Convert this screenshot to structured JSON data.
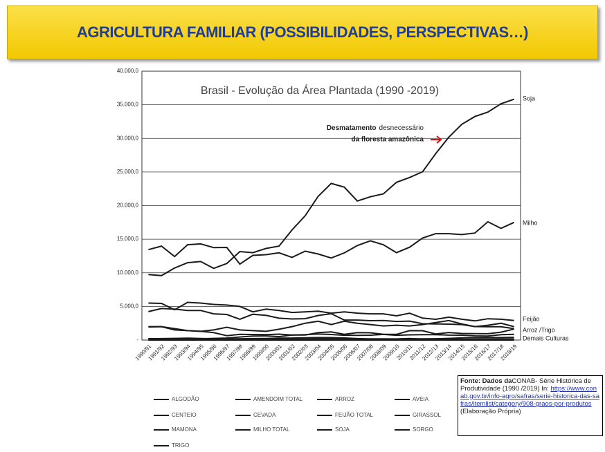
{
  "slide": {
    "title": "AGRICULTURA FAMILIAR (POSSIBILIDADES, PERSPECTIVAS…)",
    "source": {
      "label": "Fonte: Dados da",
      "text": "CONAB- Série Histórica de Produtividade (1990 /2019) In:",
      "url": "https://www.conab.gov.br/info-agro/safras/serie-historica-das-safras/itemlist/category/908-graos-por-produtos",
      "suffix": "(Elaboração Própria)"
    }
  },
  "chart_data": {
    "type": "line",
    "title": "Brasil - Evolução da Área Plantada (1990 -2019)",
    "categories": [
      "1990/91",
      "1991/92",
      "1992/93",
      "1993/94",
      "1994/95",
      "1995/96",
      "1996/97",
      "1997/98",
      "1998/99",
      "1999/00",
      "2000/01",
      "2001/02",
      "2002/03",
      "2003/04",
      "2004/05",
      "2005/06",
      "2006/07",
      "2007/08",
      "2008/09",
      "2009/10",
      "2010/11",
      "2011/12",
      "2012/13",
      "2013/14",
      "2014/15",
      "2015/16",
      "2016/17",
      "2017/18",
      "2018/19"
    ],
    "ylim": [
      0,
      40000
    ],
    "yticks": [
      {
        "value": 0,
        "label": "-"
      },
      {
        "value": 5000,
        "label": "5.000,0"
      },
      {
        "value": 10000,
        "label": "10.000,0"
      },
      {
        "value": 15000,
        "label": "15.000,0"
      },
      {
        "value": 20000,
        "label": "20.000,0"
      },
      {
        "value": 25000,
        "label": "25.000,0"
      },
      {
        "value": 30000,
        "label": "30.000,0"
      },
      {
        "value": 35000,
        "label": "35.000,0"
      },
      {
        "value": 40000,
        "label": "40.000,0"
      }
    ],
    "grid": true,
    "series": [
      {
        "name": "ALGODÃO",
        "color": "#1a1a1a",
        "values": [
          1940,
          2000,
          1500,
          1400,
          1300,
          1100,
          650,
          850,
          820,
          800,
          870,
          750,
          740,
          1100,
          1200,
          850,
          1100,
          1080,
          840,
          840,
          1400,
          1390,
          900,
          1120,
          980,
          960,
          940,
          1175,
          1620
        ]
      },
      {
        "name": "AMENDOIM TOTAL",
        "color": "#1a1a1a",
        "values": [
          100,
          90,
          85,
          95,
          90,
          80,
          80,
          95,
          100,
          100,
          105,
          100,
          90,
          95,
          130,
          100,
          110,
          115,
          105,
          85,
          90,
          110,
          105,
          110,
          105,
          125,
          140,
          150,
          165
        ]
      },
      {
        "name": "ARROZ",
        "color": "#1a1a1a",
        "values": [
          4230,
          4690,
          4600,
          4400,
          4400,
          3900,
          3800,
          3100,
          3840,
          3670,
          3250,
          3140,
          3180,
          3650,
          3920,
          2970,
          2970,
          2880,
          2910,
          2770,
          2820,
          2430,
          2400,
          2370,
          2300,
          2010,
          1980,
          1970,
          1700
        ]
      },
      {
        "name": "AVEIA",
        "color": "#1a1a1a",
        "values": [
          200,
          220,
          250,
          280,
          240,
          180,
          170,
          200,
          220,
          240,
          280,
          300,
          330,
          370,
          360,
          310,
          220,
          160,
          160,
          150,
          170,
          190,
          200,
          250,
          320,
          350,
          370,
          370,
          400
        ]
      },
      {
        "name": "CENTEIO",
        "color": "#1a1a1a",
        "values": [
          5,
          5,
          5,
          5,
          5,
          5,
          5,
          5,
          5,
          5,
          5,
          5,
          4,
          4,
          3,
          3,
          4,
          3,
          3,
          3,
          3,
          3,
          3,
          3,
          3,
          3,
          3,
          4,
          5
        ]
      },
      {
        "name": "CEVADA",
        "color": "#1a1a1a",
        "values": [
          110,
          100,
          90,
          100,
          90,
          80,
          70,
          130,
          150,
          140,
          140,
          150,
          130,
          150,
          140,
          140,
          90,
          110,
          150,
          90,
          90,
          90,
          90,
          100,
          110,
          100,
          100,
          100,
          100
        ]
      },
      {
        "name": "FEIJÃO TOTAL",
        "color": "#1a1a1a",
        "values": [
          5500,
          5450,
          4500,
          5600,
          5500,
          5300,
          5200,
          5000,
          4200,
          4600,
          4400,
          4100,
          4200,
          4300,
          4000,
          4200,
          4000,
          3900,
          3900,
          3600,
          3990,
          3260,
          3080,
          3400,
          3100,
          2850,
          3170,
          3100,
          2900
        ]
      },
      {
        "name": "GIRASSOL",
        "color": "#1a1a1a",
        "values": [
          10,
          10,
          10,
          10,
          10,
          20,
          20,
          20,
          40,
          50,
          80,
          60,
          70,
          60,
          50,
          70,
          80,
          110,
          80,
          90,
          70,
          70,
          70,
          140,
          110,
          50,
          60,
          90,
          60
        ]
      },
      {
        "name": "MAMONA",
        "color": "#1a1a1a",
        "values": [
          200,
          200,
          150,
          100,
          110,
          110,
          150,
          150,
          130,
          160,
          190,
          130,
          130,
          170,
          210,
          150,
          150,
          160,
          160,
          160,
          240,
          130,
          80,
          80,
          90,
          30,
          30,
          30,
          50
        ]
      },
      {
        "name": "MILHO TOTAL",
        "color": "#1a1a1a",
        "values": [
          13451,
          13973,
          12417,
          14175,
          14300,
          13744,
          13780,
          11300,
          12600,
          12700,
          12972,
          12300,
          13226,
          12800,
          12208,
          12964,
          14055,
          14765,
          14172,
          12994,
          13806,
          15178,
          15829,
          15829,
          15693,
          15922,
          17592,
          16616,
          17500
        ]
      },
      {
        "name": "SOJA",
        "color": "#1a1a1a",
        "values": [
          9743,
          9582,
          10717,
          11502,
          11679,
          10663,
          11381,
          13158,
          12995,
          13623,
          13970,
          16386,
          18475,
          21376,
          23301,
          22749,
          20687,
          21313,
          21743,
          23468,
          24181,
          25042,
          27736,
          30173,
          32093,
          33252,
          33909,
          35149,
          35822
        ]
      },
      {
        "name": "SORGO",
        "color": "#1a1a1a",
        "values": [
          200,
          180,
          200,
          190,
          200,
          250,
          300,
          450,
          600,
          620,
          500,
          750,
          800,
          900,
          820,
          710,
          700,
          720,
          830,
          710,
          770,
          790,
          800,
          730,
          720,
          620,
          590,
          800,
          850
        ]
      },
      {
        "name": "TRIGO",
        "color": "#1a1a1a",
        "values": [
          2000,
          2000,
          1700,
          1400,
          1300,
          1500,
          1900,
          1500,
          1400,
          1300,
          1600,
          2000,
          2500,
          2800,
          2300,
          2800,
          2500,
          2300,
          2100,
          2200,
          2100,
          2300,
          2600,
          2900,
          2400,
          2000,
          2200,
          2500,
          2000
        ]
      }
    ],
    "annotations": [
      "Soja",
      "Milho",
      "Feijão",
      "Arroz /Trigo",
      "Demais Culturas"
    ],
    "deforestation_note": [
      "Desmatamento",
      "desnecessário",
      "da floresta amazônica"
    ]
  }
}
